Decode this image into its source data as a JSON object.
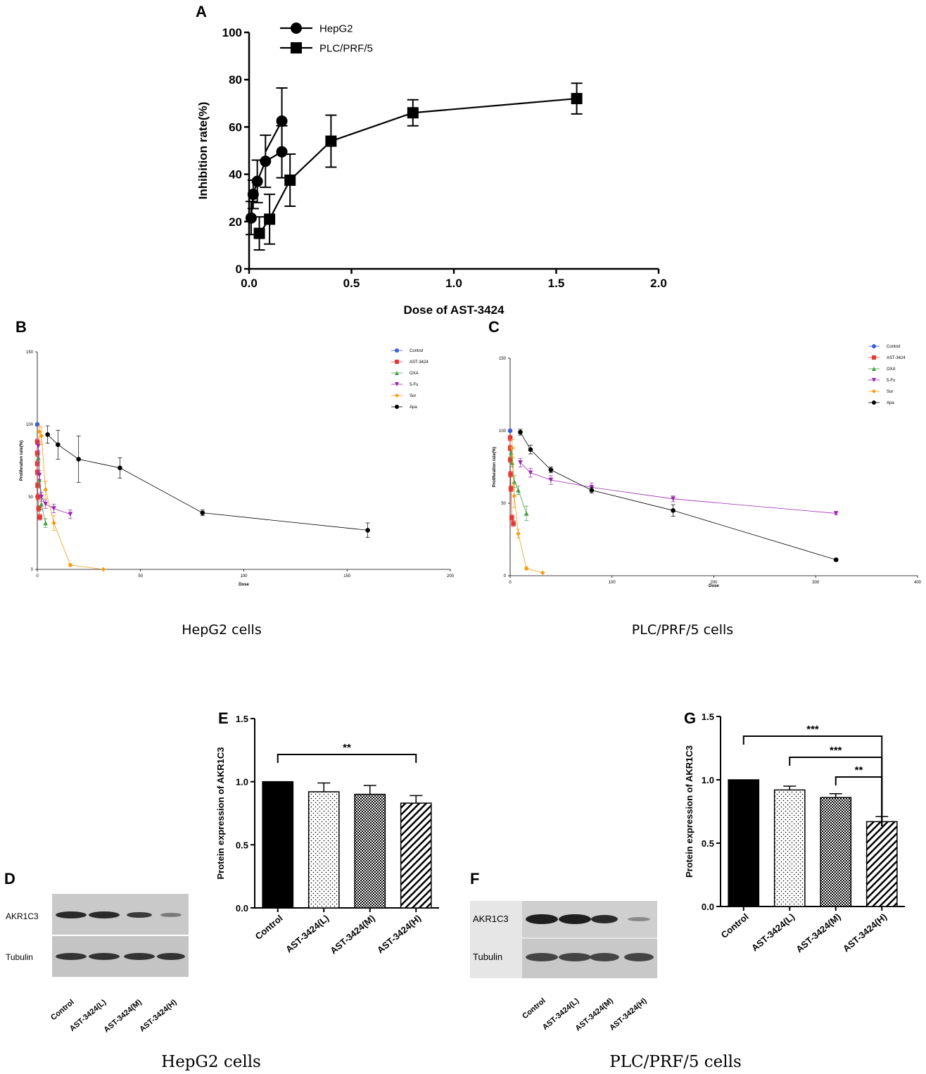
{
  "panels": {
    "A": {
      "label": "A"
    },
    "B": {
      "label": "B",
      "caption": "HepG2  cells"
    },
    "C": {
      "label": "C",
      "caption": "PLC/PRF/5  cells"
    },
    "D": {
      "label": "D",
      "caption": "HepG2 cells",
      "rows": [
        "AKR1C3",
        "Tubulin"
      ],
      "lanes": [
        "Control",
        "AST-3424(L)",
        "AST-3424(M)",
        "AST-3424(H)"
      ]
    },
    "E": {
      "label": "E"
    },
    "F": {
      "label": "F",
      "caption": "PLC/PRF/5 cells",
      "rows": [
        "AKR1C3",
        "Tubulin"
      ],
      "lanes": [
        "Control",
        "AST-3424(L)",
        "AST-3424(M)",
        "AST-3424(H)"
      ]
    },
    "G": {
      "label": "G"
    }
  },
  "chart_data": [
    {
      "id": "A",
      "type": "line",
      "title": "",
      "xlabel": "Dose of AST-3424",
      "ylabel": "Inhibition rate(%)",
      "xlim": [
        0,
        2.0
      ],
      "ylim": [
        0,
        100
      ],
      "xticks": [
        "0.0",
        "0.5",
        "1.0",
        "1.5",
        "2.0"
      ],
      "yticks": [
        "0",
        "20",
        "40",
        "60",
        "80",
        "100"
      ],
      "legend_position": "top-left",
      "series": [
        {
          "name": "HepG2",
          "marker": "circle",
          "color": "#000000",
          "x": [
            0.01,
            0.02,
            0.04,
            0.08,
            0.16
          ],
          "y": [
            21.5,
            31.5,
            37,
            45.5,
            49.5
          ],
          "err": [
            7,
            6,
            9,
            11,
            11
          ]
        },
        {
          "name": "PLC/PRF/5",
          "marker": "square",
          "color": "#000000",
          "x": [
            0.05,
            0.1,
            0.2,
            0.4,
            0.8,
            1.6
          ],
          "y": [
            15,
            21,
            37.5,
            54,
            66,
            72
          ],
          "err": [
            7,
            10.5,
            11,
            11,
            5.5,
            6.5
          ]
        }
      ],
      "extra_points": [
        {
          "series": "HepG2",
          "x": 0.16,
          "y": 62.5,
          "err": 14
        }
      ]
    },
    {
      "id": "B",
      "type": "line",
      "xlabel": "Dose",
      "ylabel": "Proliferation rate(%)",
      "xlim": [
        0,
        200
      ],
      "ylim": [
        0,
        150
      ],
      "xticks": [
        "0",
        "50",
        "100",
        "150",
        "200"
      ],
      "yticks": [
        "0",
        "50",
        "100",
        "150"
      ],
      "legend_position": "top-right",
      "series": [
        {
          "name": "Control",
          "color": "#3b5fd6",
          "marker": "circle",
          "x": [
            0
          ],
          "y": [
            100
          ],
          "err": [
            0
          ]
        },
        {
          "name": "AST-3424",
          "color": "#e53935",
          "marker": "square",
          "x": [
            0.01,
            0.02,
            0.04,
            0.08,
            0.16,
            0.32,
            0.64,
            1.28
          ],
          "y": [
            88,
            80,
            73,
            67,
            58,
            50,
            42,
            36
          ],
          "err": [
            2,
            2,
            2,
            2,
            2,
            2,
            2,
            2
          ]
        },
        {
          "name": "OXA",
          "color": "#43a047",
          "marker": "triangle",
          "x": [
            0.5,
            1,
            2,
            4
          ],
          "y": [
            77,
            62,
            45,
            32
          ],
          "err": [
            3,
            4,
            4,
            3
          ]
        },
        {
          "name": "5-Fu",
          "color": "#9c27b0",
          "marker": "triangle-down",
          "x": [
            0.5,
            1,
            2,
            4,
            8,
            16
          ],
          "y": [
            85,
            65,
            50,
            45,
            42,
            38
          ],
          "err": [
            3,
            3,
            3,
            3,
            3,
            3
          ]
        },
        {
          "name": "Sor",
          "color": "#f39c12",
          "marker": "diamond",
          "x": [
            1,
            2,
            4,
            8,
            16,
            32
          ],
          "y": [
            95,
            92,
            55,
            32,
            3,
            0
          ],
          "err": [
            4,
            6,
            6,
            5,
            1,
            0
          ]
        },
        {
          "name": "Apa",
          "color": "#000000",
          "marker": "circle",
          "x": [
            5,
            10,
            20,
            40,
            80,
            160
          ],
          "y": [
            93,
            86,
            76,
            70,
            39,
            27
          ],
          "err": [
            6,
            10,
            16,
            7,
            2,
            5
          ]
        }
      ]
    },
    {
      "id": "C",
      "type": "line",
      "xlabel": "Dose",
      "ylabel": "Proliferation rate(%)",
      "xlim": [
        0,
        400
      ],
      "ylim": [
        0,
        150
      ],
      "xticks": [
        "0",
        "100",
        "200",
        "300",
        "400"
      ],
      "yticks": [
        "0",
        "50",
        "100",
        "150"
      ],
      "legend_position": "top-right",
      "series": [
        {
          "name": "Control",
          "color": "#3b5fd6",
          "marker": "circle",
          "x": [
            0
          ],
          "y": [
            100
          ],
          "err": [
            0
          ]
        },
        {
          "name": "AST-3424",
          "color": "#e53935",
          "marker": "square",
          "x": [
            0.05,
            0.1,
            0.2,
            0.4,
            0.8,
            1.6,
            3.2
          ],
          "y": [
            95,
            88,
            80,
            70,
            60,
            40,
            36
          ],
          "err": [
            2,
            2,
            2,
            2,
            2,
            2,
            2
          ]
        },
        {
          "name": "OXA",
          "color": "#43a047",
          "marker": "triangle",
          "x": [
            1,
            2,
            4,
            8,
            16
          ],
          "y": [
            85,
            78,
            65,
            59,
            43
          ],
          "err": [
            3,
            3,
            4,
            3,
            5
          ]
        },
        {
          "name": "5-Fu",
          "color": "#9c27b0",
          "marker": "triangle-down",
          "x": [
            10,
            20,
            40,
            80,
            160,
            320
          ],
          "y": [
            78,
            71,
            66,
            61,
            53,
            43
          ],
          "err": [
            3,
            3,
            3,
            3,
            2,
            1
          ]
        },
        {
          "name": "Sor",
          "color": "#f39c12",
          "marker": "diamond",
          "x": [
            2,
            4,
            8,
            16,
            32
          ],
          "y": [
            88,
            55,
            29,
            5,
            2
          ],
          "err": [
            6,
            8,
            3,
            1,
            0
          ]
        },
        {
          "name": "Apa",
          "color": "#000000",
          "marker": "circle",
          "x": [
            10,
            20,
            40,
            80,
            160,
            320
          ],
          "y": [
            99,
            87,
            73,
            59,
            45,
            11
          ],
          "err": [
            2,
            3,
            2,
            2,
            4,
            1
          ]
        }
      ]
    },
    {
      "id": "E",
      "type": "bar",
      "ylabel": "Protein expression of AKR1C3",
      "ylim": [
        0,
        1.5
      ],
      "yticks": [
        "0.0",
        "0.5",
        "1.0",
        "1.5"
      ],
      "categories": [
        "Control",
        "AST-3424(L)",
        "AST-3424(M)",
        "AST-3424(H)"
      ],
      "values": [
        1.0,
        0.92,
        0.9,
        0.83
      ],
      "err": [
        0,
        0.07,
        0.07,
        0.06
      ],
      "patterns": [
        "solid",
        "dots",
        "grid",
        "diagonal"
      ],
      "significance": [
        {
          "from": 0,
          "to": 3,
          "label": "**"
        }
      ]
    },
    {
      "id": "G",
      "type": "bar",
      "ylabel": "Protein expression of AKR1C3",
      "ylim": [
        0,
        1.5
      ],
      "yticks": [
        "0.0",
        "0.5",
        "1.0",
        "1.5"
      ],
      "categories": [
        "Control",
        "AST-3424(L)",
        "AST-3424(M)",
        "AST-3424(H)"
      ],
      "values": [
        1.0,
        0.92,
        0.86,
        0.67
      ],
      "err": [
        0,
        0.03,
        0.03,
        0.04
      ],
      "patterns": [
        "solid",
        "dots",
        "grid",
        "diagonal"
      ],
      "significance": [
        {
          "from": 0,
          "to": 3,
          "label": "***"
        },
        {
          "from": 1,
          "to": 3,
          "label": "***"
        },
        {
          "from": 2,
          "to": 3,
          "label": "**"
        }
      ]
    }
  ]
}
